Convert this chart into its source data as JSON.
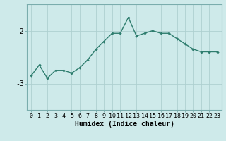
{
  "x": [
    0,
    1,
    2,
    3,
    4,
    5,
    6,
    7,
    8,
    9,
    10,
    11,
    12,
    13,
    14,
    15,
    16,
    17,
    18,
    19,
    20,
    21,
    22,
    23
  ],
  "y": [
    -2.85,
    -2.65,
    -2.9,
    -2.75,
    -2.75,
    -2.8,
    -2.7,
    -2.55,
    -2.35,
    -2.2,
    -2.05,
    -2.05,
    -1.75,
    -2.1,
    -2.05,
    -2.0,
    -2.05,
    -2.05,
    -2.15,
    -2.25,
    -2.35,
    -2.4,
    -2.4,
    -2.4
  ],
  "line_color": "#2e7d6e",
  "marker": "D",
  "marker_size": 2.2,
  "line_width": 1.0,
  "bg_color": "#ceeaea",
  "grid_color": "#aed0d0",
  "xlabel": "Humidex (Indice chaleur)",
  "xlim": [
    -0.5,
    23.5
  ],
  "ylim": [
    -3.5,
    -1.5
  ],
  "yticks": [
    -3,
    -2
  ],
  "xticks": [
    0,
    1,
    2,
    3,
    4,
    5,
    6,
    7,
    8,
    9,
    10,
    11,
    12,
    13,
    14,
    15,
    16,
    17,
    18,
    19,
    20,
    21,
    22,
    23
  ],
  "xlabel_fontsize": 7,
  "tick_fontsize": 6,
  "ytick_fontsize": 7
}
